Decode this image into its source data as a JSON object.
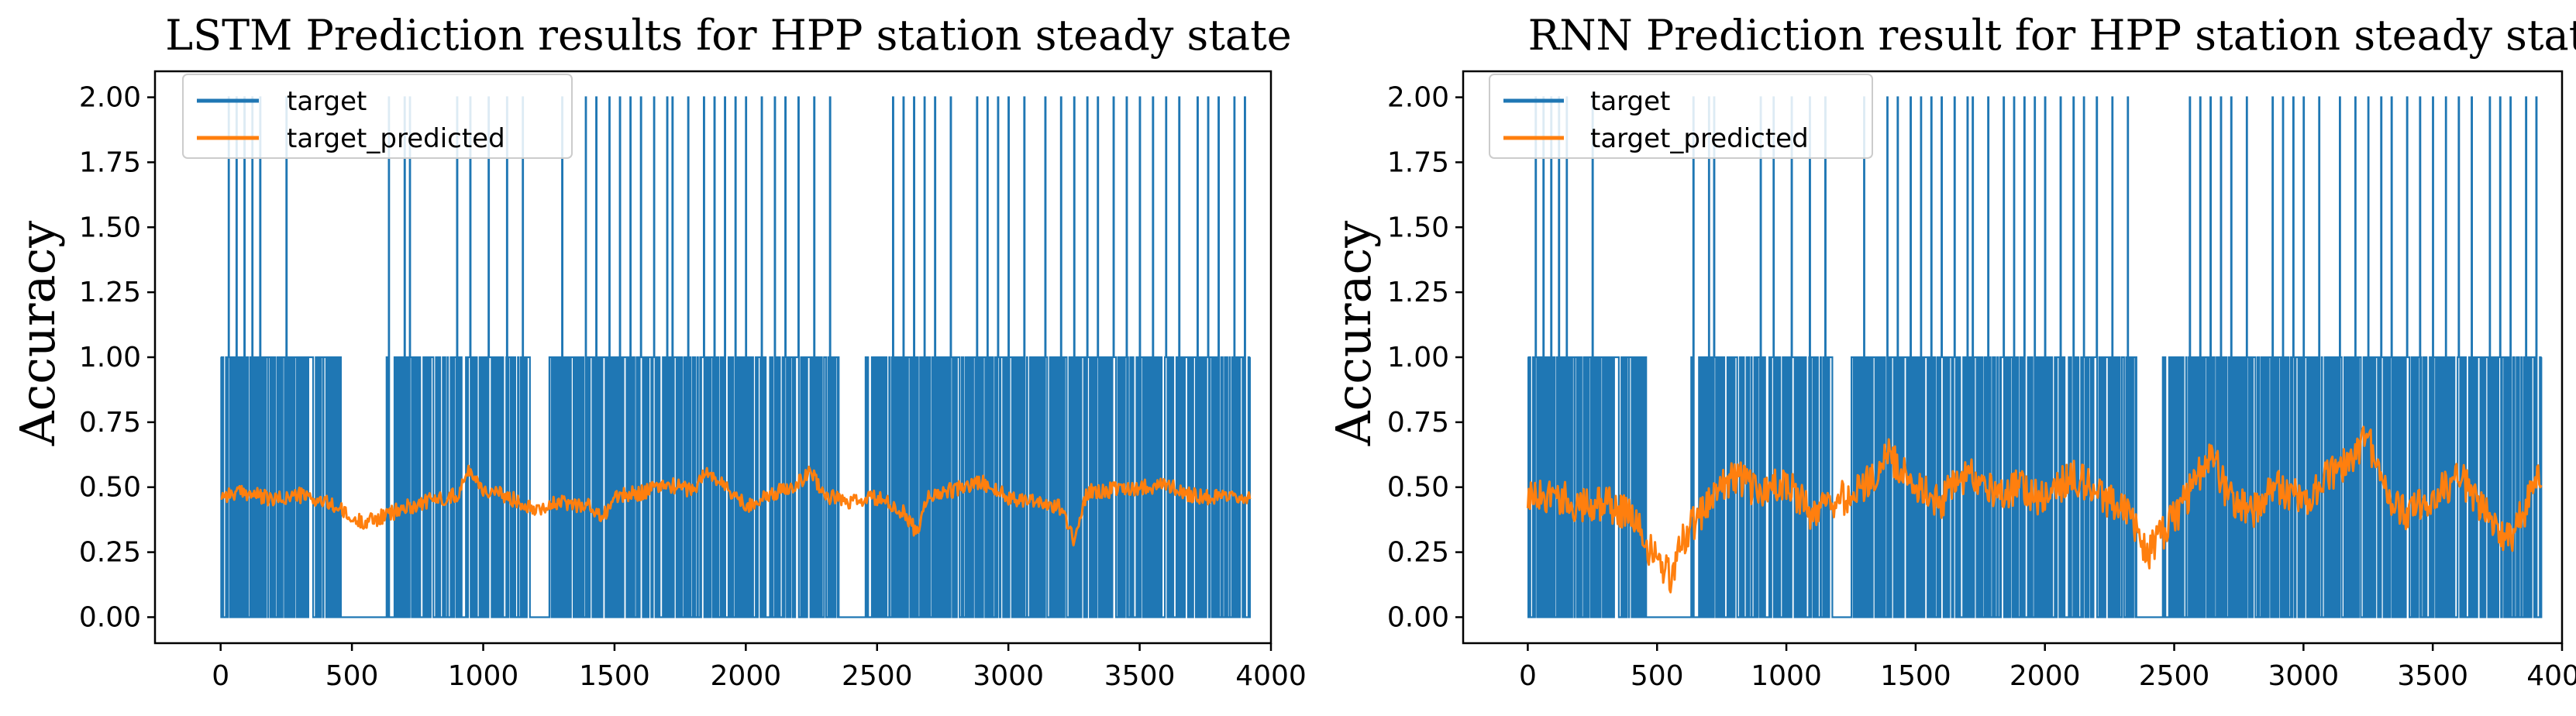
{
  "colors": {
    "target": "#1f77b4",
    "target_predicted": "#ff7f0e"
  },
  "chart_data": [
    {
      "type": "line",
      "title": "LSTM Prediction results for HPP station steady state",
      "xlabel": "",
      "ylabel": "Accuracy",
      "xlim": [
        -250,
        4000
      ],
      "ylim": [
        -0.1,
        2.1
      ],
      "xticks": [
        0,
        500,
        1000,
        1500,
        2000,
        2500,
        3000,
        3500,
        4000
      ],
      "yticks": [
        0.0,
        0.25,
        0.5,
        0.75,
        1.0,
        1.25,
        1.5,
        1.75,
        2.0
      ],
      "legend": [
        "target",
        "target_predicted"
      ],
      "legend_position": "top-left",
      "series": [
        {
          "name": "target",
          "x_range": [
            0,
            3920
          ],
          "levels": [
            0,
            1,
            2
          ],
          "x_at_2": [
            30,
            60,
            90,
            120,
            150,
            250,
            640,
            700,
            720,
            900,
            950,
            1020,
            1090,
            1150,
            1250,
            1300,
            1390,
            1430,
            1480,
            1520,
            1560,
            1600,
            1650,
            1700,
            1720,
            1780,
            1840,
            1880,
            1920,
            1960,
            2000,
            2060,
            2110,
            2150,
            2200,
            2260,
            2320,
            2560,
            2600,
            2640,
            2680,
            2720,
            2780,
            2880,
            2920,
            2960,
            3000,
            3060,
            3140,
            3200,
            3250,
            3300,
            3340,
            3400,
            3450,
            3500,
            3550,
            3600,
            3650,
            3720,
            3760,
            3800,
            3860,
            3900
          ],
          "gaps_at_0": [
            [
              460,
              630
            ],
            [
              1180,
              1250
            ],
            [
              2360,
              2450
            ]
          ]
        },
        {
          "name": "target_predicted",
          "x": [
            0,
            100,
            200,
            300,
            400,
            450,
            500,
            550,
            600,
            650,
            700,
            800,
            900,
            950,
            1000,
            1100,
            1200,
            1300,
            1400,
            1450,
            1500,
            1600,
            1700,
            1800,
            1850,
            1900,
            2000,
            2100,
            2200,
            2250,
            2300,
            2400,
            2500,
            2600,
            2650,
            2700,
            2800,
            2900,
            3000,
            3100,
            3200,
            3250,
            3300,
            3400,
            3500,
            3600,
            3700,
            3800,
            3920
          ],
          "values": [
            0.47,
            0.48,
            0.45,
            0.47,
            0.44,
            0.42,
            0.37,
            0.37,
            0.38,
            0.4,
            0.42,
            0.45,
            0.47,
            0.57,
            0.49,
            0.46,
            0.42,
            0.44,
            0.43,
            0.38,
            0.46,
            0.48,
            0.51,
            0.49,
            0.56,
            0.52,
            0.43,
            0.47,
            0.52,
            0.56,
            0.47,
            0.44,
            0.46,
            0.4,
            0.33,
            0.47,
            0.49,
            0.52,
            0.46,
            0.45,
            0.42,
            0.3,
            0.48,
            0.49,
            0.5,
            0.51,
            0.47,
            0.46,
            0.45
          ]
        }
      ]
    },
    {
      "type": "line",
      "title": "RNN Prediction result for HPP station steady state",
      "xlabel": "",
      "ylabel": "Accuracy",
      "xlim": [
        -250,
        4000
      ],
      "ylim": [
        -0.1,
        2.1
      ],
      "xticks": [
        0,
        500,
        1000,
        1500,
        2000,
        2500,
        3000,
        3500,
        4000
      ],
      "yticks": [
        0.0,
        0.25,
        0.5,
        0.75,
        1.0,
        1.25,
        1.5,
        1.75,
        2.0
      ],
      "legend": [
        "target",
        "target_predicted"
      ],
      "legend_position": "top-left",
      "series": [
        {
          "name": "target",
          "x_range": [
            0,
            3920
          ],
          "levels": [
            0,
            1,
            2
          ],
          "x_at_2": [
            30,
            60,
            90,
            120,
            150,
            250,
            640,
            700,
            720,
            900,
            950,
            1020,
            1090,
            1150,
            1250,
            1300,
            1390,
            1430,
            1480,
            1520,
            1560,
            1600,
            1650,
            1700,
            1720,
            1780,
            1840,
            1880,
            1920,
            1960,
            2000,
            2060,
            2110,
            2150,
            2200,
            2260,
            2320,
            2560,
            2600,
            2640,
            2680,
            2720,
            2780,
            2880,
            2920,
            2960,
            3000,
            3060,
            3140,
            3200,
            3250,
            3300,
            3340,
            3400,
            3450,
            3500,
            3550,
            3600,
            3650,
            3720,
            3760,
            3800,
            3860,
            3900
          ],
          "gaps_at_0": [
            [
              460,
              630
            ],
            [
              1180,
              1250
            ],
            [
              2360,
              2450
            ]
          ]
        },
        {
          "name": "target_predicted",
          "x": [
            0,
            100,
            200,
            300,
            400,
            450,
            500,
            550,
            600,
            700,
            800,
            900,
            1000,
            1100,
            1200,
            1300,
            1400,
            1500,
            1600,
            1700,
            1800,
            1900,
            2000,
            2100,
            2200,
            2300,
            2400,
            2500,
            2600,
            2650,
            2700,
            2800,
            2900,
            3000,
            3100,
            3200,
            3250,
            3300,
            3400,
            3500,
            3600,
            3700,
            3800,
            3920
          ],
          "values": [
            0.45,
            0.48,
            0.42,
            0.44,
            0.4,
            0.3,
            0.22,
            0.15,
            0.3,
            0.45,
            0.55,
            0.48,
            0.52,
            0.4,
            0.45,
            0.5,
            0.62,
            0.5,
            0.45,
            0.55,
            0.48,
            0.5,
            0.45,
            0.55,
            0.48,
            0.42,
            0.25,
            0.38,
            0.55,
            0.62,
            0.48,
            0.4,
            0.5,
            0.45,
            0.55,
            0.62,
            0.7,
            0.5,
            0.4,
            0.45,
            0.55,
            0.4,
            0.3,
            0.55
          ]
        }
      ]
    }
  ]
}
